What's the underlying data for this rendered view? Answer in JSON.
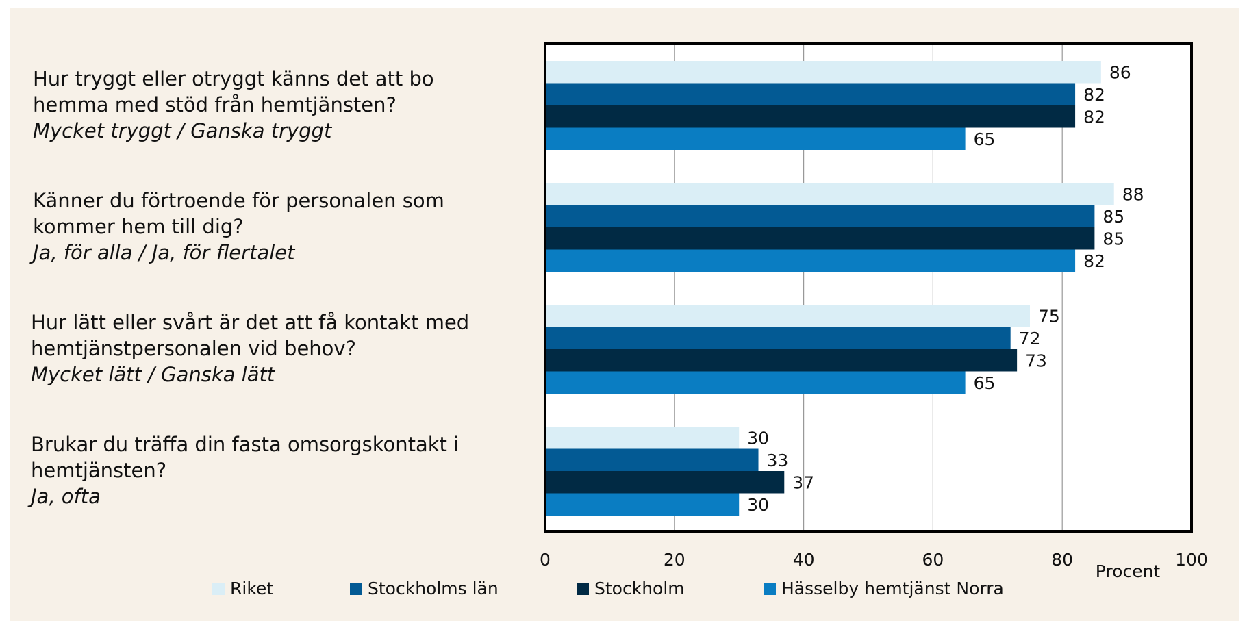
{
  "chart_data": {
    "type": "hbar",
    "categories": [
      "Hur tryggt eller otryggt känns det att bo hemma med stöd från hemtjänsten?",
      "Känner du förtroende för personalen som kommer hem till dig?",
      "Hur lätt eller svårt är det att få kontakt med hemtjänstpersonalen vid behov?",
      "Brukar du träffa din fasta omsorgskontakt i hemtjänsten?"
    ],
    "answers": [
      "Mycket tryggt / Ganska tryggt",
      "Ja, för alla / Ja, för flertalet",
      "Mycket lätt / Ganska lätt",
      "Ja, ofta"
    ],
    "series": [
      {
        "name": "Riket",
        "color": "#daeef6",
        "values": [
          86,
          88,
          75,
          30
        ]
      },
      {
        "name": "Stockholms län",
        "color": "#035a94",
        "values": [
          82,
          85,
          72,
          33
        ]
      },
      {
        "name": "Stockholm",
        "color": "#012a44",
        "values": [
          82,
          85,
          73,
          37
        ]
      },
      {
        "name": "Hässelby hemtjänst Norra",
        "color": "#0a7dc2",
        "values": [
          65,
          82,
          65,
          30
        ]
      }
    ],
    "xlabel": "Procent",
    "xlim": [
      0,
      100
    ],
    "xticks": [
      0,
      20,
      40,
      60,
      80,
      100
    ],
    "grid": true
  }
}
